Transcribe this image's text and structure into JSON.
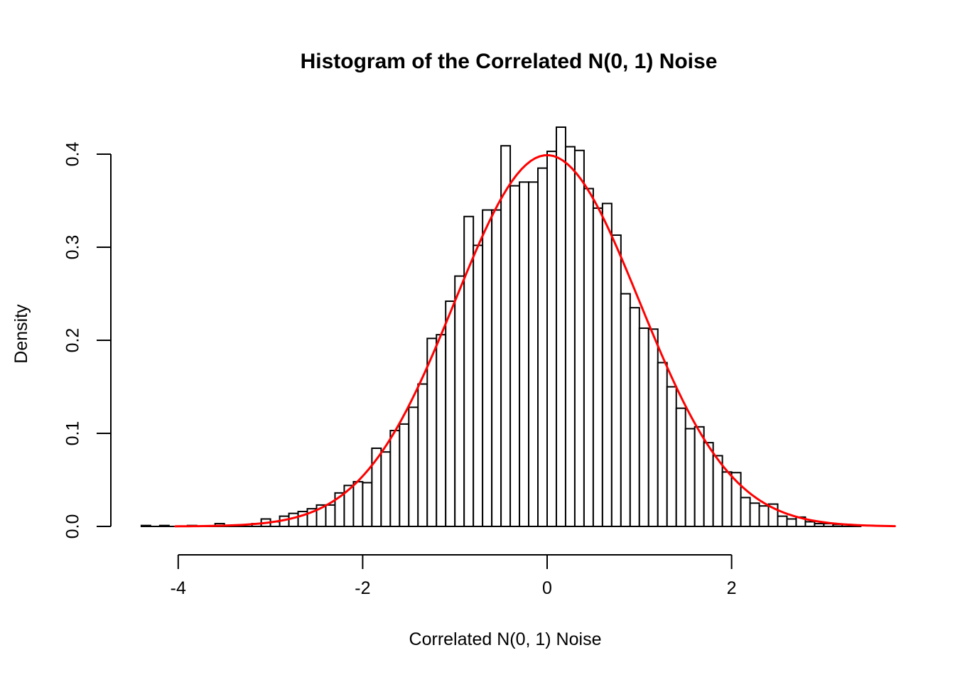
{
  "page": {
    "background": "#ffffff"
  },
  "chart_data": {
    "type": "histogram",
    "title": "Histogram of the Correlated N(0, 1) Noise",
    "xlabel": "Correlated N(0, 1) Noise",
    "ylabel": "Density",
    "grid": false,
    "legend": false,
    "axis_color": "#000000",
    "bar_fill": "#ffffff",
    "bar_stroke": "#000000",
    "x_ticks": [
      {
        "value": -4,
        "label": "-4"
      },
      {
        "value": -2,
        "label": "-2"
      },
      {
        "value": 0,
        "label": "0"
      },
      {
        "value": 2,
        "label": "2"
      }
    ],
    "y_ticks": [
      {
        "value": 0.0,
        "label": "0.0"
      },
      {
        "value": 0.1,
        "label": "0.1"
      },
      {
        "value": 0.2,
        "label": "0.2"
      },
      {
        "value": 0.3,
        "label": "0.3"
      },
      {
        "value": 0.4,
        "label": "0.4"
      }
    ],
    "xlim": [
      -4.45,
      3.85
    ],
    "ylim": [
      0,
      0.43
    ],
    "bin_start": -4.4,
    "bin_width": 0.1,
    "densities": [
      0.001,
      0,
      0.001,
      0,
      0,
      0.001,
      0,
      0,
      0.003,
      0,
      0,
      0,
      0.003,
      0.008,
      0.005,
      0.011,
      0.014,
      0.016,
      0.019,
      0.023,
      0.023,
      0.036,
      0.044,
      0.048,
      0.047,
      0.084,
      0.08,
      0.103,
      0.11,
      0.128,
      0.153,
      0.202,
      0.206,
      0.242,
      0.269,
      0.333,
      0.302,
      0.34,
      0.34,
      0.409,
      0.366,
      0.37,
      0.37,
      0.385,
      0.403,
      0.429,
      0.408,
      0.404,
      0.363,
      0.342,
      0.347,
      0.313,
      0.25,
      0.235,
      0.213,
      0.212,
      0.176,
      0.15,
      0.127,
      0.105,
      0.107,
      0.09,
      0.076,
      0.0585,
      0.0578,
      0.031,
      0.025,
      0.022,
      0.024,
      0.011,
      0.008,
      0.01,
      0.005,
      0.003,
      0.003,
      0.002,
      0.002,
      0.001
    ],
    "overlay_curve": {
      "name": "normal-density-curve",
      "distribution": "N(0, 1)",
      "mean": 0,
      "sd": 1,
      "x_range": [
        -4.03,
        3.8
      ],
      "color": "#ff0000"
    }
  }
}
